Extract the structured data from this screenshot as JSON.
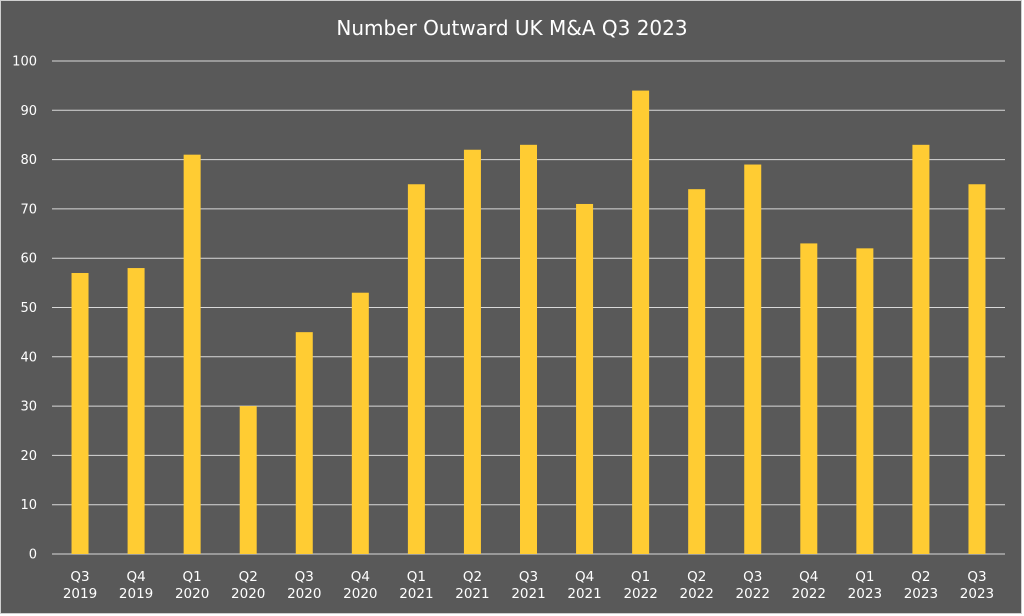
{
  "chart_data": {
    "type": "bar",
    "title": "Number Outward UK M&A Q3 2023",
    "xlabel": "",
    "ylabel": "",
    "categories": [
      [
        "Q3",
        "2019"
      ],
      [
        "Q4",
        "2019"
      ],
      [
        "Q1",
        "2020"
      ],
      [
        "Q2",
        "2020"
      ],
      [
        "Q3",
        "2020"
      ],
      [
        "Q4",
        "2020"
      ],
      [
        "Q1",
        "2021"
      ],
      [
        "Q2",
        "2021"
      ],
      [
        "Q3",
        "2021"
      ],
      [
        "Q4",
        "2021"
      ],
      [
        "Q1",
        "2022"
      ],
      [
        "Q2",
        "2022"
      ],
      [
        "Q3",
        "2022"
      ],
      [
        "Q4",
        "2022"
      ],
      [
        "Q1",
        "2023"
      ],
      [
        "Q2",
        "2023"
      ],
      [
        "Q3",
        "2023"
      ]
    ],
    "values": [
      57,
      58,
      81,
      30,
      45,
      53,
      75,
      82,
      83,
      71,
      94,
      74,
      79,
      63,
      62,
      83,
      75
    ],
    "ylim": [
      0,
      100
    ],
    "yticks": [
      0,
      10,
      20,
      30,
      40,
      50,
      60,
      70,
      80,
      90,
      100
    ],
    "grid": true,
    "legend": "none",
    "colors": {
      "background": "#595959",
      "bar": "#FFCC33",
      "grid": "#d9d9d9",
      "text": "#ffffff"
    }
  }
}
